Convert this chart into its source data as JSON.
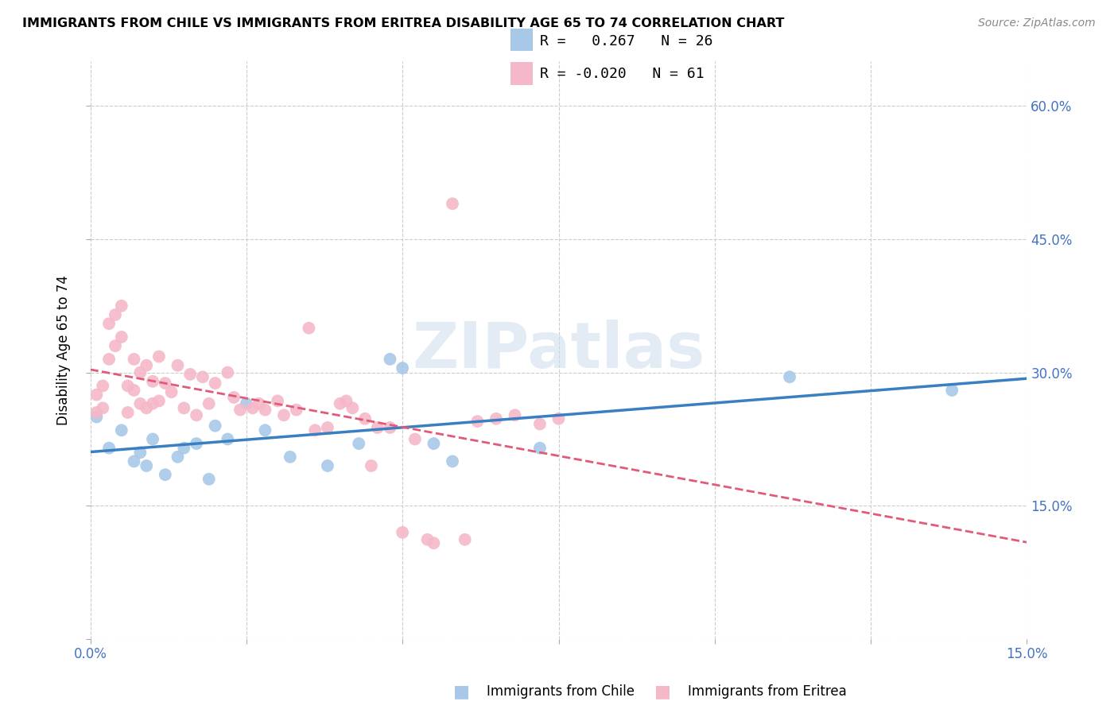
{
  "title": "IMMIGRANTS FROM CHILE VS IMMIGRANTS FROM ERITREA DISABILITY AGE 65 TO 74 CORRELATION CHART",
  "source": "Source: ZipAtlas.com",
  "ylabel": "Disability Age 65 to 74",
  "xlim": [
    0,
    0.15
  ],
  "ylim": [
    0,
    0.65
  ],
  "xticks": [
    0.0,
    0.025,
    0.05,
    0.075,
    0.1,
    0.125,
    0.15
  ],
  "xtick_labels": [
    "0.0%",
    "",
    "",
    "",
    "",
    "",
    "15.0%"
  ],
  "yticks": [
    0.0,
    0.15,
    0.3,
    0.45,
    0.6
  ],
  "ytick_labels_right": [
    "",
    "15.0%",
    "30.0%",
    "45.0%",
    "60.0%"
  ],
  "legend1_R": "0.267",
  "legend1_N": "26",
  "legend2_R": "-0.020",
  "legend2_N": "61",
  "chile_color": "#a8c8e8",
  "eritrea_color": "#f5b8c8",
  "chile_line_color": "#3a7fc1",
  "eritrea_line_color": "#e05a7a",
  "chile_x": [
    0.001,
    0.003,
    0.005,
    0.007,
    0.008,
    0.009,
    0.01,
    0.012,
    0.014,
    0.015,
    0.017,
    0.019,
    0.02,
    0.022,
    0.025,
    0.028,
    0.032,
    0.038,
    0.043,
    0.048,
    0.05,
    0.055,
    0.058,
    0.072,
    0.112,
    0.138
  ],
  "chile_y": [
    0.25,
    0.215,
    0.235,
    0.2,
    0.21,
    0.195,
    0.225,
    0.185,
    0.205,
    0.215,
    0.22,
    0.18,
    0.24,
    0.225,
    0.265,
    0.235,
    0.205,
    0.195,
    0.22,
    0.315,
    0.305,
    0.22,
    0.2,
    0.215,
    0.295,
    0.28
  ],
  "eritrea_x": [
    0.001,
    0.001,
    0.002,
    0.002,
    0.003,
    0.003,
    0.004,
    0.004,
    0.005,
    0.005,
    0.006,
    0.006,
    0.007,
    0.007,
    0.008,
    0.008,
    0.009,
    0.009,
    0.01,
    0.01,
    0.011,
    0.011,
    0.012,
    0.013,
    0.014,
    0.015,
    0.016,
    0.017,
    0.018,
    0.019,
    0.02,
    0.022,
    0.023,
    0.024,
    0.026,
    0.027,
    0.028,
    0.03,
    0.031,
    0.033,
    0.035,
    0.038,
    0.04,
    0.042,
    0.044,
    0.046,
    0.048,
    0.052,
    0.054,
    0.058,
    0.036,
    0.041,
    0.045,
    0.05,
    0.055,
    0.06,
    0.062,
    0.065,
    0.068,
    0.072,
    0.075
  ],
  "eritrea_y": [
    0.275,
    0.255,
    0.285,
    0.26,
    0.355,
    0.315,
    0.365,
    0.33,
    0.375,
    0.34,
    0.285,
    0.255,
    0.315,
    0.28,
    0.3,
    0.265,
    0.308,
    0.26,
    0.29,
    0.265,
    0.318,
    0.268,
    0.288,
    0.278,
    0.308,
    0.26,
    0.298,
    0.252,
    0.295,
    0.265,
    0.288,
    0.3,
    0.272,
    0.258,
    0.26,
    0.265,
    0.258,
    0.268,
    0.252,
    0.258,
    0.35,
    0.238,
    0.265,
    0.26,
    0.248,
    0.238,
    0.238,
    0.225,
    0.112,
    0.49,
    0.235,
    0.268,
    0.195,
    0.12,
    0.108,
    0.112,
    0.245,
    0.248,
    0.252,
    0.242,
    0.248
  ]
}
